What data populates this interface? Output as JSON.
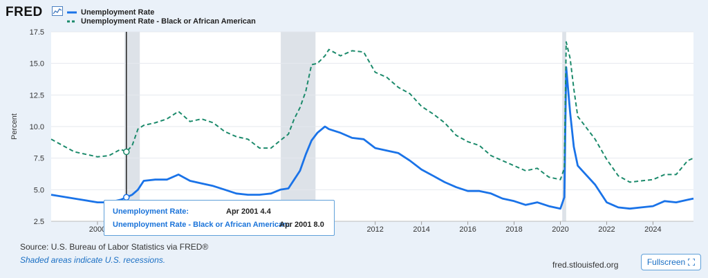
{
  "header": {
    "logo_text": "FRED",
    "logo_icon": "line-chart-icon"
  },
  "chart_data": {
    "type": "line",
    "title": "",
    "xlabel": "",
    "ylabel": "Percent",
    "xlim": [
      1998.0,
      2025.75
    ],
    "ylim": [
      2.5,
      17.5
    ],
    "yticks": [
      2.5,
      5.0,
      7.5,
      10.0,
      12.5,
      15.0,
      17.5
    ],
    "xticks": [
      2000,
      2012,
      2014,
      2016,
      2018,
      2020,
      2022,
      2024
    ],
    "grid": "horizontal",
    "legend_position": "top-left",
    "recessions": [
      [
        2001.17,
        2001.83
      ],
      [
        2007.92,
        2009.42
      ],
      [
        2020.08,
        2020.25
      ]
    ],
    "series": [
      {
        "name": "Unemployment Rate",
        "color": "#1a73e8",
        "style": "solid",
        "points": [
          [
            1998.0,
            4.6
          ],
          [
            1999.0,
            4.3
          ],
          [
            2000.0,
            4.0
          ],
          [
            2000.5,
            4.0
          ],
          [
            2001.0,
            4.2
          ],
          [
            2001.25,
            4.4
          ],
          [
            2001.5,
            4.6
          ],
          [
            2001.75,
            5.0
          ],
          [
            2002.0,
            5.7
          ],
          [
            2002.5,
            5.8
          ],
          [
            2003.0,
            5.8
          ],
          [
            2003.5,
            6.2
          ],
          [
            2004.0,
            5.7
          ],
          [
            2004.5,
            5.5
          ],
          [
            2005.0,
            5.3
          ],
          [
            2005.5,
            5.0
          ],
          [
            2006.0,
            4.7
          ],
          [
            2006.5,
            4.6
          ],
          [
            2007.0,
            4.6
          ],
          [
            2007.5,
            4.7
          ],
          [
            2007.9,
            5.0
          ],
          [
            2008.25,
            5.1
          ],
          [
            2008.5,
            5.8
          ],
          [
            2008.75,
            6.5
          ],
          [
            2009.0,
            7.8
          ],
          [
            2009.25,
            8.9
          ],
          [
            2009.5,
            9.5
          ],
          [
            2009.83,
            10.0
          ],
          [
            2010.0,
            9.8
          ],
          [
            2010.5,
            9.5
          ],
          [
            2011.0,
            9.1
          ],
          [
            2011.5,
            9.0
          ],
          [
            2012.0,
            8.3
          ],
          [
            2012.5,
            8.1
          ],
          [
            2013.0,
            7.9
          ],
          [
            2013.5,
            7.3
          ],
          [
            2014.0,
            6.6
          ],
          [
            2014.5,
            6.1
          ],
          [
            2015.0,
            5.6
          ],
          [
            2015.5,
            5.2
          ],
          [
            2016.0,
            4.9
          ],
          [
            2016.5,
            4.9
          ],
          [
            2017.0,
            4.7
          ],
          [
            2017.5,
            4.3
          ],
          [
            2018.0,
            4.1
          ],
          [
            2018.5,
            3.8
          ],
          [
            2019.0,
            4.0
          ],
          [
            2019.5,
            3.7
          ],
          [
            2020.0,
            3.5
          ],
          [
            2020.17,
            4.4
          ],
          [
            2020.25,
            14.7
          ],
          [
            2020.42,
            11.1
          ],
          [
            2020.58,
            8.4
          ],
          [
            2020.75,
            6.9
          ],
          [
            2021.0,
            6.4
          ],
          [
            2021.5,
            5.4
          ],
          [
            2022.0,
            4.0
          ],
          [
            2022.5,
            3.6
          ],
          [
            2023.0,
            3.5
          ],
          [
            2023.5,
            3.6
          ],
          [
            2024.0,
            3.7
          ],
          [
            2024.5,
            4.1
          ],
          [
            2025.0,
            4.0
          ],
          [
            2025.5,
            4.2
          ],
          [
            2025.75,
            4.3
          ]
        ]
      },
      {
        "name": "Unemployment Rate - Black or African American",
        "color": "#1b8a6b",
        "style": "dashed",
        "points": [
          [
            1998.0,
            9.0
          ],
          [
            1999.0,
            8.0
          ],
          [
            2000.0,
            7.6
          ],
          [
            2000.5,
            7.7
          ],
          [
            2001.0,
            8.2
          ],
          [
            2001.25,
            8.0
          ],
          [
            2001.5,
            8.5
          ],
          [
            2001.75,
            9.8
          ],
          [
            2002.0,
            10.1
          ],
          [
            2002.5,
            10.3
          ],
          [
            2003.0,
            10.6
          ],
          [
            2003.5,
            11.2
          ],
          [
            2004.0,
            10.4
          ],
          [
            2004.5,
            10.6
          ],
          [
            2005.0,
            10.3
          ],
          [
            2005.5,
            9.6
          ],
          [
            2006.0,
            9.2
          ],
          [
            2006.5,
            9.0
          ],
          [
            2007.0,
            8.3
          ],
          [
            2007.5,
            8.3
          ],
          [
            2007.9,
            8.9
          ],
          [
            2008.25,
            9.4
          ],
          [
            2008.5,
            10.6
          ],
          [
            2008.75,
            11.5
          ],
          [
            2009.0,
            12.8
          ],
          [
            2009.25,
            14.9
          ],
          [
            2009.5,
            15.0
          ],
          [
            2009.83,
            15.6
          ],
          [
            2010.0,
            16.1
          ],
          [
            2010.5,
            15.6
          ],
          [
            2011.0,
            16.0
          ],
          [
            2011.5,
            15.9
          ],
          [
            2012.0,
            14.3
          ],
          [
            2012.5,
            13.9
          ],
          [
            2013.0,
            13.1
          ],
          [
            2013.5,
            12.6
          ],
          [
            2014.0,
            11.6
          ],
          [
            2014.5,
            11.0
          ],
          [
            2015.0,
            10.3
          ],
          [
            2015.5,
            9.3
          ],
          [
            2016.0,
            8.8
          ],
          [
            2016.5,
            8.5
          ],
          [
            2017.0,
            7.7
          ],
          [
            2017.5,
            7.3
          ],
          [
            2018.0,
            6.9
          ],
          [
            2018.5,
            6.5
          ],
          [
            2019.0,
            6.7
          ],
          [
            2019.5,
            6.0
          ],
          [
            2020.0,
            5.8
          ],
          [
            2020.17,
            6.7
          ],
          [
            2020.25,
            16.7
          ],
          [
            2020.42,
            15.4
          ],
          [
            2020.58,
            13.0
          ],
          [
            2020.75,
            10.8
          ],
          [
            2021.0,
            10.2
          ],
          [
            2021.5,
            9.0
          ],
          [
            2022.0,
            7.4
          ],
          [
            2022.5,
            6.1
          ],
          [
            2023.0,
            5.6
          ],
          [
            2023.5,
            5.7
          ],
          [
            2024.0,
            5.8
          ],
          [
            2024.5,
            6.2
          ],
          [
            2025.0,
            6.2
          ],
          [
            2025.5,
            7.3
          ],
          [
            2025.75,
            7.5
          ]
        ]
      }
    ]
  },
  "tooltip": {
    "label1": "Unemployment Rate:",
    "value1": "Apr 2001 4.4",
    "label2": "Unemployment Rate - Black or African American:",
    "value2": "Apr 2001 8.0",
    "date": 2001.25
  },
  "footer": {
    "source": "Source: U.S. Bureau of Labor Statistics via FRED®",
    "recession_note": "Shaded areas indicate U.S. recessions.",
    "site": "fred.stlouisfed.org",
    "fullscreen_label": "Fullscreen",
    "fullscreen_icon": "expand-icon"
  }
}
